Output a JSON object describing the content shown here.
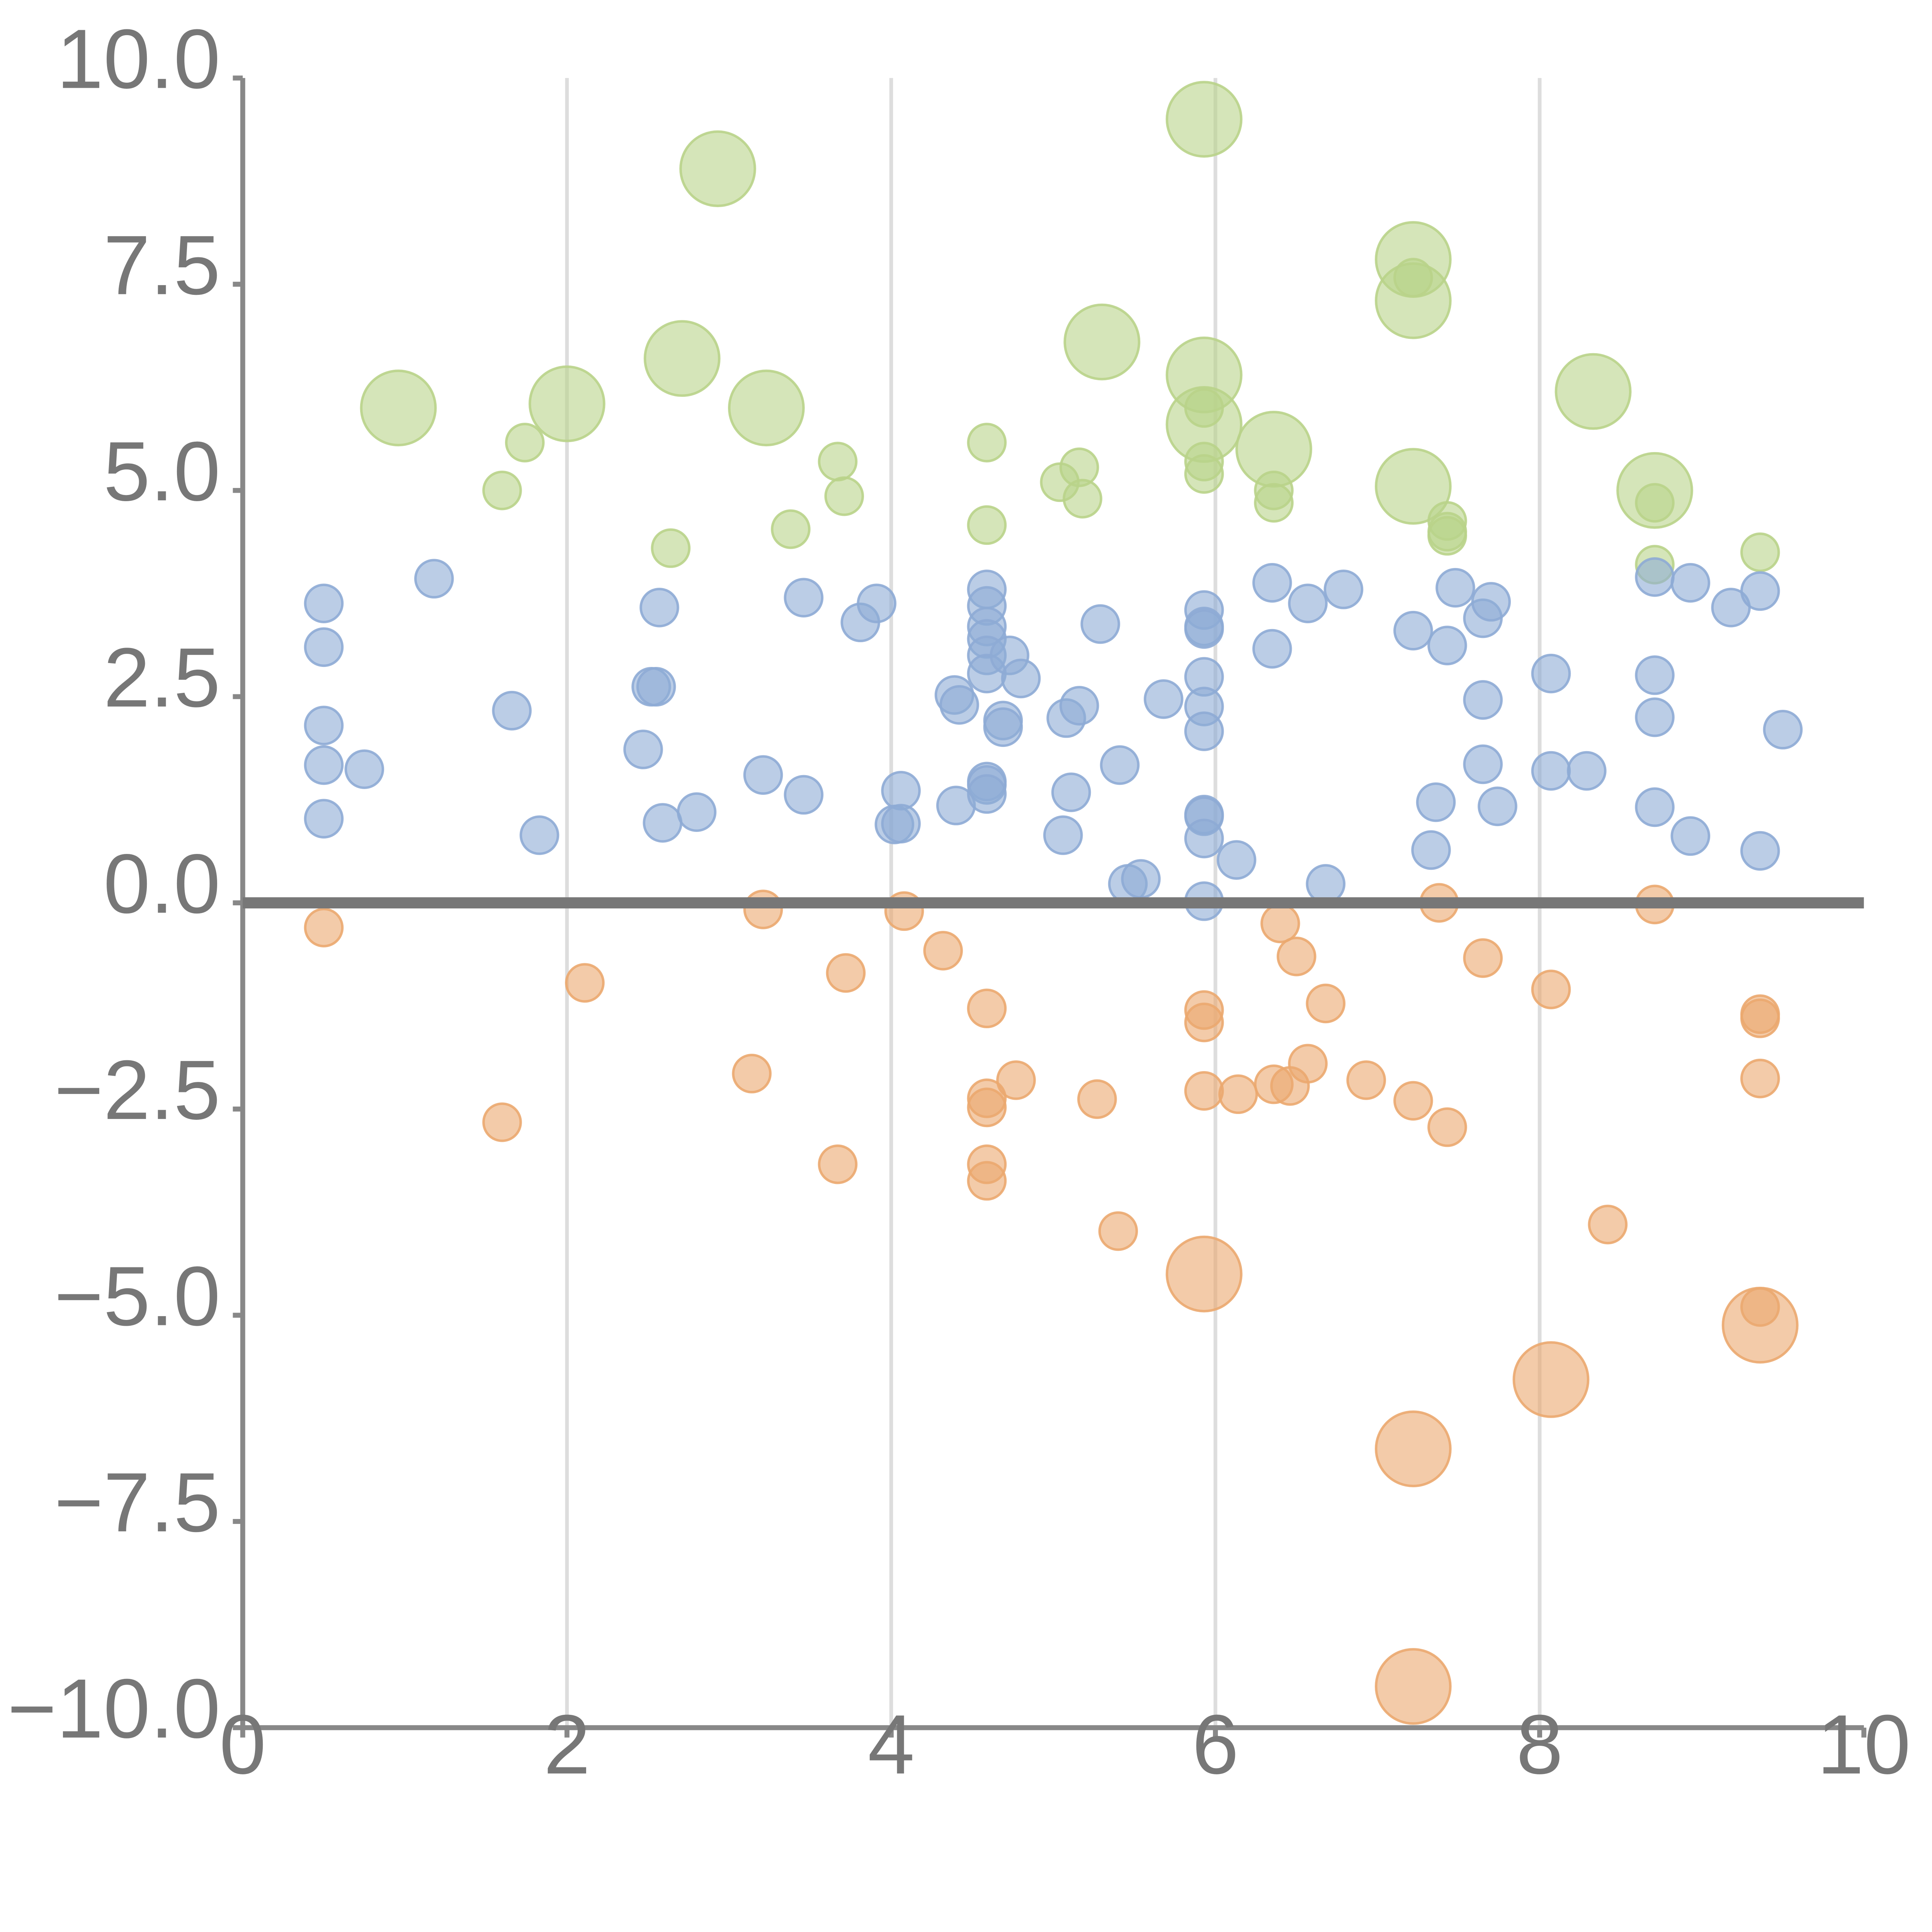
{
  "chart_data": {
    "type": "scatter",
    "title": "",
    "xlabel": "",
    "ylabel": "",
    "xlim": [
      0,
      10
    ],
    "ylim": [
      -10,
      10
    ],
    "grid": "vertical",
    "legend": "none",
    "x_ticks": [
      0,
      2,
      4,
      6,
      8,
      10
    ],
    "x_tick_labels": [
      "0",
      "2",
      "4",
      "6",
      "8",
      "10"
    ],
    "y_ticks": [
      10,
      7.5,
      5,
      2.5,
      0,
      -2.5,
      -5,
      -7.5,
      -10
    ],
    "y_tick_labels": [
      "10.0",
      "7.5",
      "5.0",
      "2.5",
      "0.0",
      "−2.5",
      "−5.0",
      "−7.5",
      "−10.0"
    ],
    "series": [
      {
        "name": "green",
        "color": "#b9d38a",
        "points": [
          {
            "x": 0.96,
            "y": 6.0,
            "s": 2
          },
          {
            "x": 2.0,
            "y": 6.05,
            "s": 2
          },
          {
            "x": 2.93,
            "y": 8.9,
            "s": 2
          },
          {
            "x": 2.71,
            "y": 6.6,
            "s": 2
          },
          {
            "x": 3.23,
            "y": 6.0,
            "s": 2
          },
          {
            "x": 5.3,
            "y": 6.8,
            "s": 2
          },
          {
            "x": 5.93,
            "y": 9.5,
            "s": 2
          },
          {
            "x": 5.93,
            "y": 6.4,
            "s": 2
          },
          {
            "x": 5.93,
            "y": 5.8,
            "s": 2
          },
          {
            "x": 6.36,
            "y": 5.5,
            "s": 2
          },
          {
            "x": 7.22,
            "y": 7.8,
            "s": 2
          },
          {
            "x": 7.22,
            "y": 7.3,
            "s": 2
          },
          {
            "x": 7.22,
            "y": 5.05,
            "s": 2
          },
          {
            "x": 8.33,
            "y": 6.2,
            "s": 2
          },
          {
            "x": 8.71,
            "y": 5.0,
            "s": 2
          },
          {
            "x": 1.74,
            "y": 5.58,
            "s": 1
          },
          {
            "x": 1.6,
            "y": 5.0,
            "s": 1
          },
          {
            "x": 2.64,
            "y": 4.3,
            "s": 1
          },
          {
            "x": 3.38,
            "y": 4.53,
            "s": 1
          },
          {
            "x": 3.67,
            "y": 5.35,
            "s": 1
          },
          {
            "x": 3.71,
            "y": 4.93,
            "s": 1
          },
          {
            "x": 4.59,
            "y": 5.58,
            "s": 1
          },
          {
            "x": 4.59,
            "y": 4.58,
            "s": 1
          },
          {
            "x": 5.04,
            "y": 5.1,
            "s": 1
          },
          {
            "x": 5.16,
            "y": 5.28,
            "s": 1
          },
          {
            "x": 5.18,
            "y": 4.9,
            "s": 1
          },
          {
            "x": 5.93,
            "y": 6.0,
            "s": 1
          },
          {
            "x": 5.93,
            "y": 5.35,
            "s": 1
          },
          {
            "x": 5.93,
            "y": 5.2,
            "s": 1
          },
          {
            "x": 6.36,
            "y": 5.0,
            "s": 1
          },
          {
            "x": 6.36,
            "y": 4.85,
            "s": 1
          },
          {
            "x": 7.22,
            "y": 7.58,
            "s": 1
          },
          {
            "x": 7.43,
            "y": 4.63,
            "s": 1
          },
          {
            "x": 7.43,
            "y": 4.5,
            "s": 1
          },
          {
            "x": 7.43,
            "y": 4.45,
            "s": 1
          },
          {
            "x": 8.71,
            "y": 4.85,
            "s": 1
          },
          {
            "x": 8.71,
            "y": 4.1,
            "s": 1
          },
          {
            "x": 9.36,
            "y": 4.25,
            "s": 1
          }
        ]
      },
      {
        "name": "blue",
        "color": "#8eabd5",
        "points": [
          {
            "x": 0.5,
            "y": 3.63,
            "s": 1
          },
          {
            "x": 0.5,
            "y": 3.1,
            "s": 1
          },
          {
            "x": 0.5,
            "y": 2.15,
            "s": 1
          },
          {
            "x": 0.5,
            "y": 1.67,
            "s": 1
          },
          {
            "x": 0.5,
            "y": 1.02,
            "s": 1
          },
          {
            "x": 0.75,
            "y": 1.62,
            "s": 1
          },
          {
            "x": 1.18,
            "y": 3.93,
            "s": 1
          },
          {
            "x": 1.66,
            "y": 2.33,
            "s": 1
          },
          {
            "x": 1.83,
            "y": 0.82,
            "s": 1
          },
          {
            "x": 2.47,
            "y": 1.86,
            "s": 1
          },
          {
            "x": 2.52,
            "y": 2.62,
            "s": 1
          },
          {
            "x": 2.55,
            "y": 2.62,
            "s": 1
          },
          {
            "x": 2.57,
            "y": 3.58,
            "s": 1
          },
          {
            "x": 2.59,
            "y": 0.97,
            "s": 1
          },
          {
            "x": 2.8,
            "y": 1.1,
            "s": 1
          },
          {
            "x": 3.21,
            "y": 1.55,
            "s": 1
          },
          {
            "x": 3.46,
            "y": 3.7,
            "s": 1
          },
          {
            "x": 3.46,
            "y": 1.31,
            "s": 1
          },
          {
            "x": 3.81,
            "y": 3.4,
            "s": 1
          },
          {
            "x": 3.91,
            "y": 3.63,
            "s": 1
          },
          {
            "x": 4.02,
            "y": 0.95,
            "s": 1
          },
          {
            "x": 4.06,
            "y": 1.36,
            "s": 1
          },
          {
            "x": 4.06,
            "y": 0.96,
            "s": 1
          },
          {
            "x": 4.39,
            "y": 2.52,
            "s": 1
          },
          {
            "x": 4.4,
            "y": 1.18,
            "s": 1
          },
          {
            "x": 4.42,
            "y": 2.4,
            "s": 1
          },
          {
            "x": 4.59,
            "y": 3.8,
            "s": 1
          },
          {
            "x": 4.59,
            "y": 3.6,
            "s": 1
          },
          {
            "x": 4.59,
            "y": 3.35,
            "s": 1
          },
          {
            "x": 4.59,
            "y": 3.2,
            "s": 1
          },
          {
            "x": 4.59,
            "y": 3.0,
            "s": 1
          },
          {
            "x": 4.59,
            "y": 2.78,
            "s": 1
          },
          {
            "x": 4.59,
            "y": 1.47,
            "s": 1
          },
          {
            "x": 4.59,
            "y": 1.43,
            "s": 1
          },
          {
            "x": 4.59,
            "y": 1.32,
            "s": 1
          },
          {
            "x": 4.69,
            "y": 2.21,
            "s": 1
          },
          {
            "x": 4.69,
            "y": 2.13,
            "s": 1
          },
          {
            "x": 4.73,
            "y": 3.0,
            "s": 1
          },
          {
            "x": 4.8,
            "y": 2.72,
            "s": 1
          },
          {
            "x": 5.06,
            "y": 0.82,
            "s": 1
          },
          {
            "x": 5.08,
            "y": 2.24,
            "s": 1
          },
          {
            "x": 5.11,
            "y": 1.34,
            "s": 1
          },
          {
            "x": 5.16,
            "y": 2.39,
            "s": 1
          },
          {
            "x": 5.29,
            "y": 3.38,
            "s": 1
          },
          {
            "x": 5.41,
            "y": 1.67,
            "s": 1
          },
          {
            "x": 5.46,
            "y": 0.23,
            "s": 1
          },
          {
            "x": 5.54,
            "y": 0.29,
            "s": 1
          },
          {
            "x": 5.68,
            "y": 2.47,
            "s": 1
          },
          {
            "x": 5.93,
            "y": 3.55,
            "s": 1
          },
          {
            "x": 5.93,
            "y": 3.35,
            "s": 1
          },
          {
            "x": 5.93,
            "y": 3.32,
            "s": 1
          },
          {
            "x": 5.93,
            "y": 2.74,
            "s": 1
          },
          {
            "x": 5.93,
            "y": 2.38,
            "s": 1
          },
          {
            "x": 5.93,
            "y": 2.08,
            "s": 1
          },
          {
            "x": 5.93,
            "y": 1.07,
            "s": 1
          },
          {
            "x": 5.93,
            "y": 1.05,
            "s": 1
          },
          {
            "x": 5.93,
            "y": 0.78,
            "s": 1
          },
          {
            "x": 5.93,
            "y": 0.02,
            "s": 1
          },
          {
            "x": 6.13,
            "y": 0.52,
            "s": 1
          },
          {
            "x": 6.35,
            "y": 3.88,
            "s": 1
          },
          {
            "x": 6.35,
            "y": 3.08,
            "s": 1
          },
          {
            "x": 6.57,
            "y": 3.63,
            "s": 1
          },
          {
            "x": 6.68,
            "y": 0.23,
            "s": 1
          },
          {
            "x": 6.79,
            "y": 3.8,
            "s": 1
          },
          {
            "x": 7.22,
            "y": 3.3,
            "s": 1
          },
          {
            "x": 7.33,
            "y": 0.64,
            "s": 1
          },
          {
            "x": 7.36,
            "y": 1.22,
            "s": 1
          },
          {
            "x": 7.43,
            "y": 3.12,
            "s": 1
          },
          {
            "x": 7.48,
            "y": 3.82,
            "s": 1
          },
          {
            "x": 7.65,
            "y": 3.45,
            "s": 1
          },
          {
            "x": 7.65,
            "y": 2.46,
            "s": 1
          },
          {
            "x": 7.65,
            "y": 1.68,
            "s": 1
          },
          {
            "x": 7.7,
            "y": 3.65,
            "s": 1
          },
          {
            "x": 7.74,
            "y": 1.17,
            "s": 1
          },
          {
            "x": 8.07,
            "y": 2.78,
            "s": 1
          },
          {
            "x": 8.07,
            "y": 1.6,
            "s": 1
          },
          {
            "x": 8.29,
            "y": 1.6,
            "s": 1
          },
          {
            "x": 8.71,
            "y": 3.95,
            "s": 1
          },
          {
            "x": 8.71,
            "y": 2.76,
            "s": 1
          },
          {
            "x": 8.71,
            "y": 2.25,
            "s": 1
          },
          {
            "x": 8.71,
            "y": 1.16,
            "s": 1
          },
          {
            "x": 8.93,
            "y": 3.88,
            "s": 1
          },
          {
            "x": 8.93,
            "y": 0.81,
            "s": 1
          },
          {
            "x": 9.18,
            "y": 3.58,
            "s": 1
          },
          {
            "x": 9.36,
            "y": 3.78,
            "s": 1
          },
          {
            "x": 9.36,
            "y": 0.63,
            "s": 1
          },
          {
            "x": 9.5,
            "y": 2.1,
            "s": 1
          }
        ]
      },
      {
        "name": "orange",
        "color": "#eba96f",
        "points": [
          {
            "x": 0.5,
            "y": -0.3,
            "s": 1
          },
          {
            "x": 1.6,
            "y": -2.66,
            "s": 1
          },
          {
            "x": 2.11,
            "y": -0.97,
            "s": 1
          },
          {
            "x": 3.14,
            "y": -2.07,
            "s": 1
          },
          {
            "x": 3.21,
            "y": -0.08,
            "s": 1
          },
          {
            "x": 3.67,
            "y": -3.17,
            "s": 1
          },
          {
            "x": 3.72,
            "y": -0.85,
            "s": 1
          },
          {
            "x": 4.08,
            "y": -0.1,
            "s": 1
          },
          {
            "x": 4.32,
            "y": -0.58,
            "s": 1
          },
          {
            "x": 4.59,
            "y": -1.28,
            "s": 1
          },
          {
            "x": 4.59,
            "y": -2.37,
            "s": 1
          },
          {
            "x": 4.59,
            "y": -2.48,
            "s": 1
          },
          {
            "x": 4.59,
            "y": -3.17,
            "s": 1
          },
          {
            "x": 4.59,
            "y": -3.37,
            "s": 1
          },
          {
            "x": 4.77,
            "y": -2.15,
            "s": 1
          },
          {
            "x": 5.27,
            "y": -2.38,
            "s": 1
          },
          {
            "x": 5.4,
            "y": -3.98,
            "s": 1
          },
          {
            "x": 5.93,
            "y": -1.3,
            "s": 1
          },
          {
            "x": 5.93,
            "y": -1.45,
            "s": 1
          },
          {
            "x": 5.93,
            "y": -2.28,
            "s": 1
          },
          {
            "x": 6.14,
            "y": -2.32,
            "s": 1
          },
          {
            "x": 6.36,
            "y": -2.2,
            "s": 1
          },
          {
            "x": 6.4,
            "y": -0.25,
            "s": 1
          },
          {
            "x": 6.46,
            "y": -2.22,
            "s": 1
          },
          {
            "x": 6.5,
            "y": -0.65,
            "s": 1
          },
          {
            "x": 6.57,
            "y": -1.95,
            "s": 1
          },
          {
            "x": 6.68,
            "y": -1.22,
            "s": 1
          },
          {
            "x": 6.93,
            "y": -2.15,
            "s": 1
          },
          {
            "x": 7.22,
            "y": -2.4,
            "s": 1
          },
          {
            "x": 7.38,
            "y": 0.0,
            "s": 1
          },
          {
            "x": 7.43,
            "y": -2.72,
            "s": 1
          },
          {
            "x": 7.65,
            "y": -0.67,
            "s": 1
          },
          {
            "x": 8.07,
            "y": -1.05,
            "s": 1
          },
          {
            "x": 8.42,
            "y": -3.9,
            "s": 1
          },
          {
            "x": 8.71,
            "y": -0.02,
            "s": 1
          },
          {
            "x": 9.36,
            "y": -1.35,
            "s": 1
          },
          {
            "x": 9.36,
            "y": -1.4,
            "s": 1
          },
          {
            "x": 9.36,
            "y": -2.13,
            "s": 1
          },
          {
            "x": 9.36,
            "y": -4.9,
            "s": 1
          },
          {
            "x": 5.93,
            "y": -4.5,
            "s": 2
          },
          {
            "x": 7.22,
            "y": -6.62,
            "s": 2
          },
          {
            "x": 8.07,
            "y": -5.78,
            "s": 2
          },
          {
            "x": 9.36,
            "y": -5.12,
            "s": 2
          },
          {
            "x": 7.22,
            "y": -9.5,
            "s": 2
          }
        ]
      }
    ]
  }
}
